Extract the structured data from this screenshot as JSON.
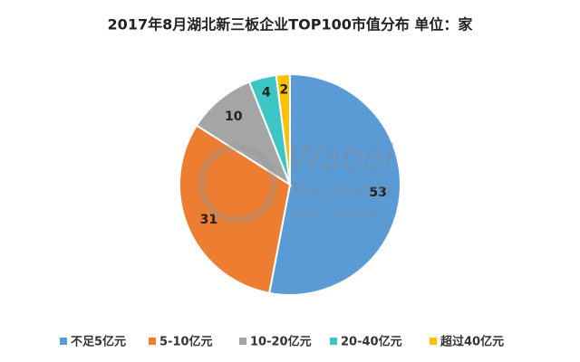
{
  "chart_data": {
    "type": "pie",
    "title": "2017年8月湖北新三板企业TOP100市值分布 单位：家",
    "categories": [
      "不足5亿元",
      "5-10亿元",
      "10-20亿元",
      "20-40亿元",
      "超过40亿元"
    ],
    "values": [
      53,
      31,
      10,
      4,
      2
    ],
    "colors": [
      "#5b9bd5",
      "#ed7d31",
      "#a5a5a5",
      "#3ec6c6",
      "#ffc000"
    ],
    "legend": "bottom",
    "watermark": [
      "Wabei",
      "Research",
      "挖贝新三板研究院"
    ]
  }
}
